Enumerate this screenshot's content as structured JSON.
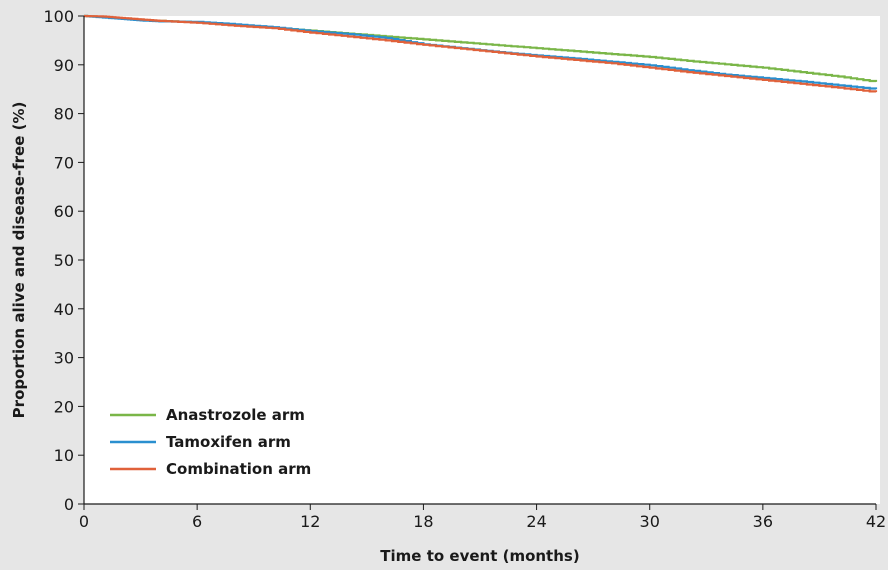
{
  "chart_data": {
    "type": "line",
    "title": "",
    "xlabel": "Time to event (months)",
    "ylabel": "Proportion alive and disease-free (%)",
    "xlim": [
      0,
      42
    ],
    "ylim": [
      0,
      100
    ],
    "xticks": [
      0,
      6,
      12,
      18,
      24,
      30,
      36,
      42
    ],
    "yticks": [
      0,
      10,
      20,
      30,
      40,
      50,
      60,
      70,
      80,
      90,
      100
    ],
    "grid": false,
    "legend_position": "bottom-left",
    "series": [
      {
        "name": "Anastrozole arm",
        "color": "#7ab648",
        "x": [
          0,
          1,
          2,
          3,
          4,
          6,
          8,
          10,
          12,
          14,
          16,
          18,
          20,
          22,
          24,
          26,
          28,
          30,
          32,
          34,
          36,
          38,
          40,
          42
        ],
        "y": [
          100,
          99.8,
          99.5,
          99.2,
          99.0,
          98.7,
          98.2,
          97.6,
          97.0,
          96.4,
          95.8,
          95.2,
          94.6,
          94.0,
          93.4,
          92.8,
          92.2,
          91.6,
          90.8,
          90.1,
          89.4,
          88.5,
          87.6,
          86.5
        ]
      },
      {
        "name": "Tamoxifen arm",
        "color": "#2a8fcf",
        "x": [
          0,
          1,
          2,
          3,
          4,
          6,
          8,
          10,
          12,
          14,
          16,
          18,
          20,
          22,
          24,
          26,
          28,
          30,
          32,
          34,
          36,
          38,
          40,
          42
        ],
        "y": [
          100,
          99.7,
          99.4,
          99.1,
          98.9,
          98.8,
          98.3,
          97.7,
          96.9,
          96.3,
          95.5,
          94.2,
          93.4,
          92.6,
          91.9,
          91.3,
          90.6,
          89.9,
          88.9,
          88.0,
          87.3,
          86.6,
          85.8,
          85.0
        ]
      },
      {
        "name": "Combination arm",
        "color": "#e0613a",
        "x": [
          0,
          1,
          2,
          3,
          4,
          6,
          8,
          10,
          12,
          14,
          16,
          18,
          20,
          22,
          24,
          26,
          28,
          30,
          32,
          34,
          36,
          38,
          40,
          42
        ],
        "y": [
          100,
          99.9,
          99.6,
          99.3,
          99.0,
          98.6,
          98.0,
          97.5,
          96.6,
          95.8,
          95.0,
          94.1,
          93.3,
          92.5,
          91.7,
          91.0,
          90.3,
          89.4,
          88.5,
          87.7,
          86.9,
          86.1,
          85.3,
          84.4
        ]
      }
    ]
  }
}
